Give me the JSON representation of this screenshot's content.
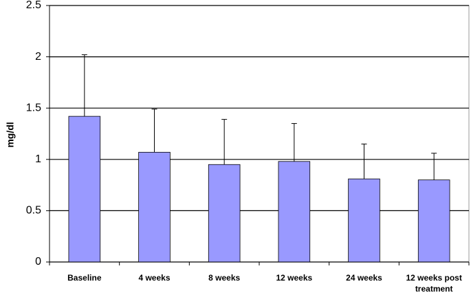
{
  "chart_data": {
    "type": "bar",
    "y_label": "mg/dl",
    "categories": [
      "Baseline",
      "4 weeks",
      "8 weeks",
      "12 weeks",
      "24 weeks",
      "12 weeks post treatment"
    ],
    "values": [
      1.42,
      1.07,
      0.95,
      0.98,
      0.81,
      0.8
    ],
    "errors": [
      0.6,
      0.42,
      0.44,
      0.37,
      0.34,
      0.26
    ],
    "color": "#9999ff",
    "ylim": [
      0,
      2.5
    ],
    "yticks": [
      0,
      0.5,
      1,
      1.5,
      2,
      2.5
    ],
    "grid": true
  }
}
